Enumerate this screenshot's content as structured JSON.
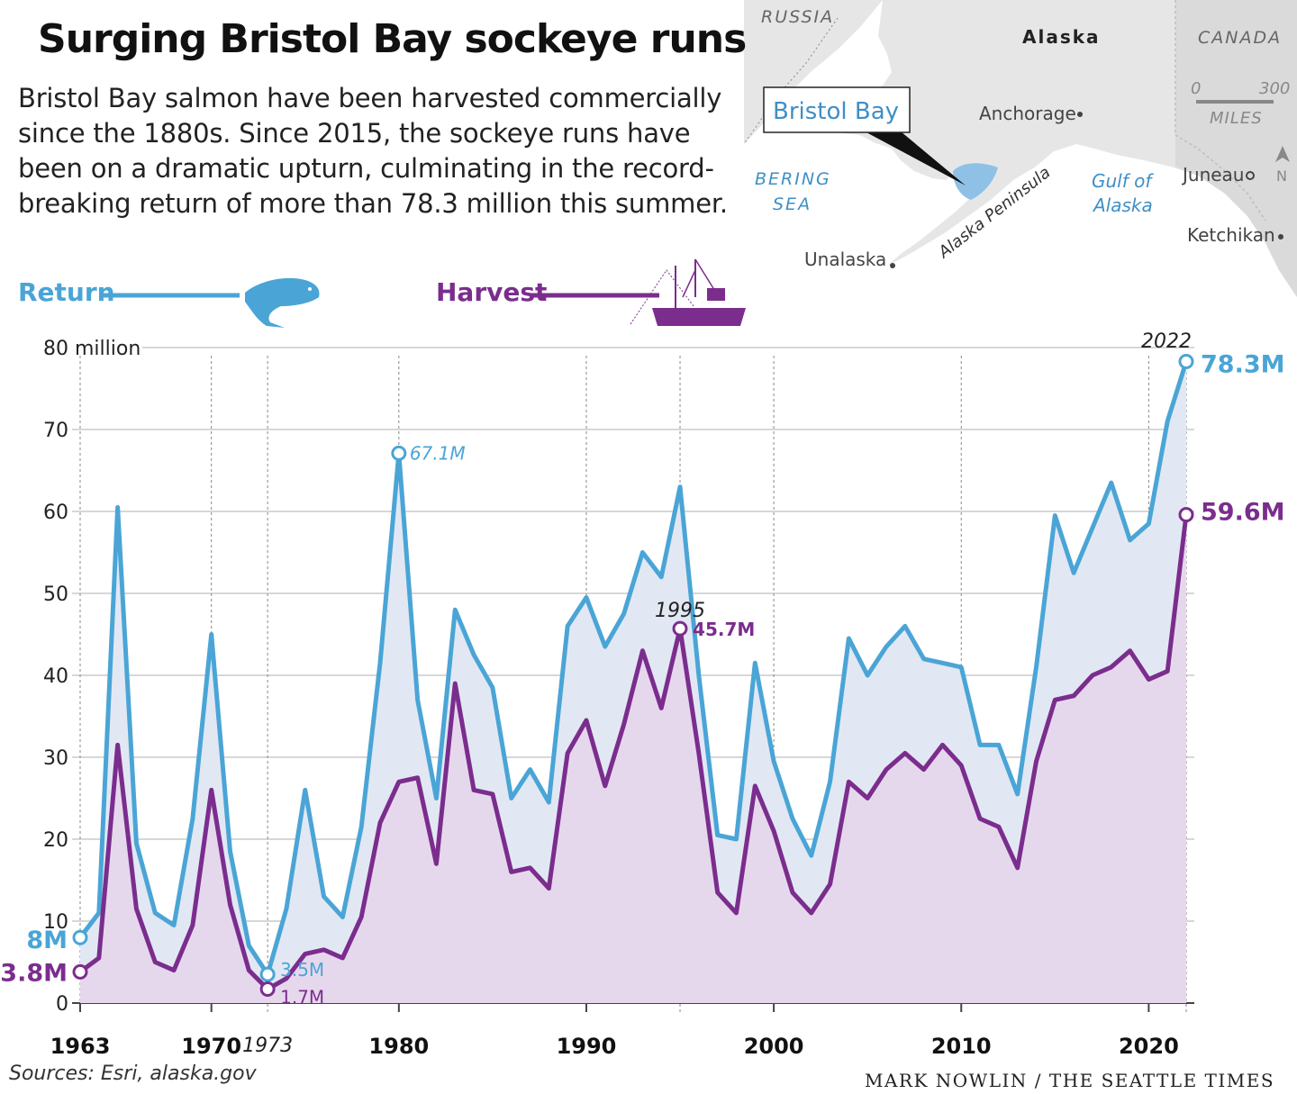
{
  "title": "Surging Bristol Bay sockeye runs",
  "subtitle": "Bristol Bay salmon have been harvested commercially since the 1880s. Since 2015, the sockeye runs have been on a dramatic upturn, culminating in the record-breaking return of more than 78.3 million this summer.",
  "legend": {
    "return_label": "Return",
    "harvest_label": "Harvest"
  },
  "map": {
    "labels": {
      "russia": "RUSSIA",
      "alaska": "Alaska",
      "canada": "CANADA",
      "bristol_bay": "Bristol Bay",
      "anchorage": "Anchorage",
      "bering_sea_1": "BERING",
      "bering_sea_2": "SEA",
      "gulf_1": "Gulf of",
      "gulf_2": "Alaska",
      "juneau": "Juneau",
      "ketchikan": "Ketchikan",
      "unalaska": "Unalaska",
      "peninsula": "Alaska Peninsula",
      "scale_min": "0",
      "scale_max": "300",
      "scale_unit": "MILES",
      "north": "N"
    }
  },
  "colors": {
    "return": "#4aa5d6",
    "harvest": "#7b2d8e",
    "return_fill": "#e2e8f3",
    "harvest_fill": "#e6d8ec",
    "map_land": "#e6e6e6",
    "map_water_label": "#3f8fc6"
  },
  "sources": "Sources: Esri, alaska.gov",
  "credit": "MARK NOWLIN / THE SEATTLE TIMES",
  "chart_data": {
    "type": "area",
    "ylim": [
      0,
      80
    ],
    "y_ticks": [
      0,
      10,
      20,
      30,
      40,
      50,
      60,
      70,
      80
    ],
    "y_tick_labels": [
      "0",
      "10",
      "20",
      "30",
      "40",
      "50",
      "60",
      "70",
      "80 million"
    ],
    "x_ticks": [
      1963,
      1970,
      1980,
      1990,
      2000,
      2010,
      2020
    ],
    "x": [
      1963,
      1964,
      1965,
      1966,
      1967,
      1968,
      1969,
      1970,
      1971,
      1972,
      1973,
      1974,
      1975,
      1976,
      1977,
      1978,
      1979,
      1980,
      1981,
      1982,
      1983,
      1984,
      1985,
      1986,
      1987,
      1988,
      1989,
      1990,
      1991,
      1992,
      1993,
      1994,
      1995,
      1996,
      1997,
      1998,
      1999,
      2000,
      2001,
      2002,
      2003,
      2004,
      2005,
      2006,
      2007,
      2008,
      2009,
      2010,
      2011,
      2012,
      2013,
      2014,
      2015,
      2016,
      2017,
      2018,
      2019,
      2020,
      2021,
      2022
    ],
    "series": [
      {
        "name": "Return",
        "values": [
          8.0,
          11.0,
          60.5,
          19.5,
          11.0,
          9.5,
          22.5,
          45.0,
          18.5,
          7.0,
          3.5,
          11.5,
          26.0,
          13.0,
          10.5,
          21.5,
          41.5,
          67.1,
          37.0,
          25.0,
          48.0,
          42.5,
          38.5,
          25.0,
          28.5,
          24.5,
          46.0,
          49.5,
          43.5,
          47.5,
          55.0,
          52.0,
          63.0,
          40.0,
          20.5,
          20.0,
          41.5,
          29.5,
          22.5,
          18.0,
          27.0,
          44.5,
          40.0,
          43.5,
          46.0,
          42.0,
          41.5,
          41.0,
          31.5,
          31.5,
          25.5,
          41.0,
          59.5,
          52.5,
          58.0,
          63.5,
          56.5,
          58.5,
          71.0,
          78.3
        ]
      },
      {
        "name": "Harvest",
        "values": [
          3.8,
          5.5,
          31.5,
          11.5,
          5.0,
          4.0,
          9.5,
          26.0,
          12.0,
          4.0,
          1.7,
          3.0,
          6.0,
          6.5,
          5.5,
          10.5,
          22.0,
          27.0,
          27.5,
          17.0,
          39.0,
          26.0,
          25.5,
          16.0,
          16.5,
          14.0,
          30.5,
          34.5,
          26.5,
          34.0,
          43.0,
          36.0,
          45.7,
          30.5,
          13.5,
          11.0,
          26.5,
          21.0,
          13.5,
          11.0,
          14.5,
          27.0,
          25.0,
          28.5,
          30.5,
          28.5,
          31.5,
          29.0,
          22.5,
          21.5,
          16.5,
          29.5,
          37.0,
          37.5,
          40.0,
          41.0,
          43.0,
          39.5,
          40.5,
          59.6
        ]
      }
    ],
    "annotations": [
      {
        "year": 1963,
        "series": "Return",
        "label": "8M"
      },
      {
        "year": 1963,
        "series": "Harvest",
        "label": "3.8M"
      },
      {
        "year": 1973,
        "series": "Return",
        "label": "3.5M"
      },
      {
        "year": 1973,
        "series": "Harvest",
        "label": "1.7M"
      },
      {
        "year": 1980,
        "series": "Return",
        "label": "67.1M"
      },
      {
        "year": 1995,
        "series": "Harvest",
        "label": "45.7M"
      },
      {
        "year": 2022,
        "series": "Return",
        "label": "78.3M"
      },
      {
        "year": 2022,
        "series": "Harvest",
        "label": "59.6M"
      }
    ],
    "marked_years": [
      1963,
      1970,
      1973,
      1980,
      1990,
      1995,
      2000,
      2010,
      2020,
      2022
    ],
    "marked_year_labels": {
      "1973": "1973",
      "1995": "1995",
      "2022": "2022"
    }
  }
}
